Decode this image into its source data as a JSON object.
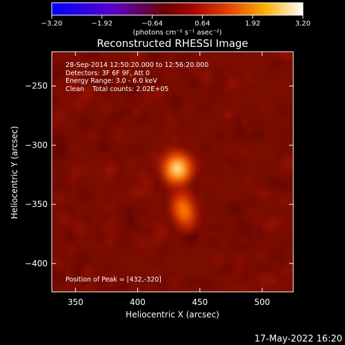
{
  "chart_data": {
    "type": "heatmap",
    "title": "Reconstructed RHESSI Image",
    "xlabel": "Heliocentric X (arcsec)",
    "ylabel": "Heliocentric Y (arcsec)",
    "xlim": [
      331,
      525
    ],
    "ylim": [
      -424,
      -221
    ],
    "x_ticks": [
      {
        "value": 350,
        "label": "350"
      },
      {
        "value": 400,
        "label": "400"
      },
      {
        "value": 450,
        "label": "450"
      },
      {
        "value": 500,
        "label": "500"
      }
    ],
    "y_ticks": [
      {
        "value": -250,
        "label": "−250"
      },
      {
        "value": -300,
        "label": "−300"
      },
      {
        "value": -350,
        "label": "−350"
      },
      {
        "value": -400,
        "label": "−400"
      }
    ],
    "colorbar": {
      "range": [
        -3.2,
        3.2
      ],
      "ticks": [
        {
          "value": -3.2,
          "label": "−3.20"
        },
        {
          "value": -1.92,
          "label": "−1.92"
        },
        {
          "value": -0.64,
          "label": "−0.64"
        },
        {
          "value": 0.64,
          "label": "0.64"
        },
        {
          "value": 1.92,
          "label": "1.92"
        },
        {
          "value": 3.2,
          "label": "3.20"
        }
      ],
      "unit_label": "(photons cm⁻² s⁻¹ asec⁻²)"
    },
    "sources": [
      {
        "x": 432,
        "y": -320,
        "level": 1.0
      },
      {
        "x": 437,
        "y": -355,
        "level": 0.75
      }
    ],
    "peak": [
      432,
      -320
    ],
    "info_lines": [
      "28-Sep-2014 12:50:20.000 to 12:56:20.000",
      "Detectors: 3F 6F 9F, Att 0",
      "Energy Range: 3.0 - 6.0 keV",
      "Clean    Total counts: 2.02E+05"
    ],
    "peak_text": "Position of Peak = [432,-320]",
    "date_stamp": "17-May-2022 16:20"
  }
}
